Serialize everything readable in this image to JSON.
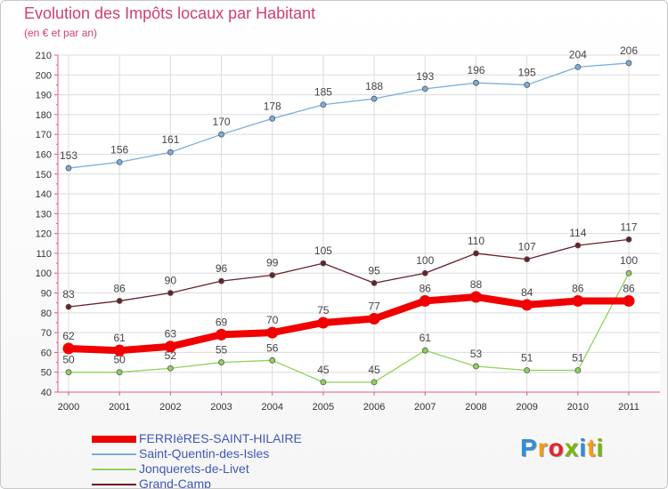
{
  "header": {
    "title": "Evolution des Impôts locaux par Habitant",
    "subtitle": "(en € et par an)"
  },
  "brand": {
    "text": "Proxiti",
    "colors": [
      "#2f8fd8",
      "#f39c12",
      "#e8232a",
      "#7ab800",
      "#2f8fd8",
      "#f39c12",
      "#7ab800"
    ]
  },
  "chart_data": {
    "type": "line",
    "title": "Evolution des Impôts locaux par Habitant",
    "subtitle": "(en € et par an)",
    "xlabel": "",
    "ylabel": "",
    "x": [
      "2000",
      "2001",
      "2002",
      "2003",
      "2004",
      "2005",
      "2006",
      "2007",
      "2008",
      "2009",
      "2010",
      "2011"
    ],
    "ylim": [
      40,
      210
    ],
    "yticks": [
      40,
      50,
      60,
      70,
      80,
      90,
      100,
      110,
      120,
      130,
      140,
      150,
      160,
      170,
      180,
      190,
      200,
      210
    ],
    "grid": true,
    "legend_position": "bottom-left",
    "series": [
      {
        "name": "Grand-Camp",
        "key": "grand-camp",
        "color": "#6b1f2a",
        "values": [
          83,
          86,
          90,
          96,
          99,
          105,
          95,
          100,
          110,
          107,
          114,
          117
        ]
      },
      {
        "name": "Jonquerets-de-Livet",
        "key": "jonquerets-de-livet",
        "color": "#8fd35a",
        "values": [
          50,
          50,
          52,
          55,
          56,
          45,
          45,
          61,
          53,
          51,
          51,
          100
        ]
      },
      {
        "name": "Saint-Quentin-des-Isles",
        "key": "saint-quentin-des-isles",
        "color": "#78aee0",
        "values": [
          153,
          156,
          161,
          170,
          178,
          185,
          188,
          193,
          196,
          195,
          204,
          206
        ]
      },
      {
        "name": "FERRIèRES-SAINT-HILAIRE",
        "key": "ferrieres-saint-hilaire",
        "color": "#f00000",
        "values": [
          62,
          61,
          63,
          69,
          70,
          75,
          77,
          86,
          88,
          84,
          86,
          86
        ]
      }
    ],
    "legend_order": [
      "ferrieres-saint-hilaire",
      "saint-quentin-des-isles",
      "jonquerets-de-livet",
      "grand-camp"
    ]
  }
}
